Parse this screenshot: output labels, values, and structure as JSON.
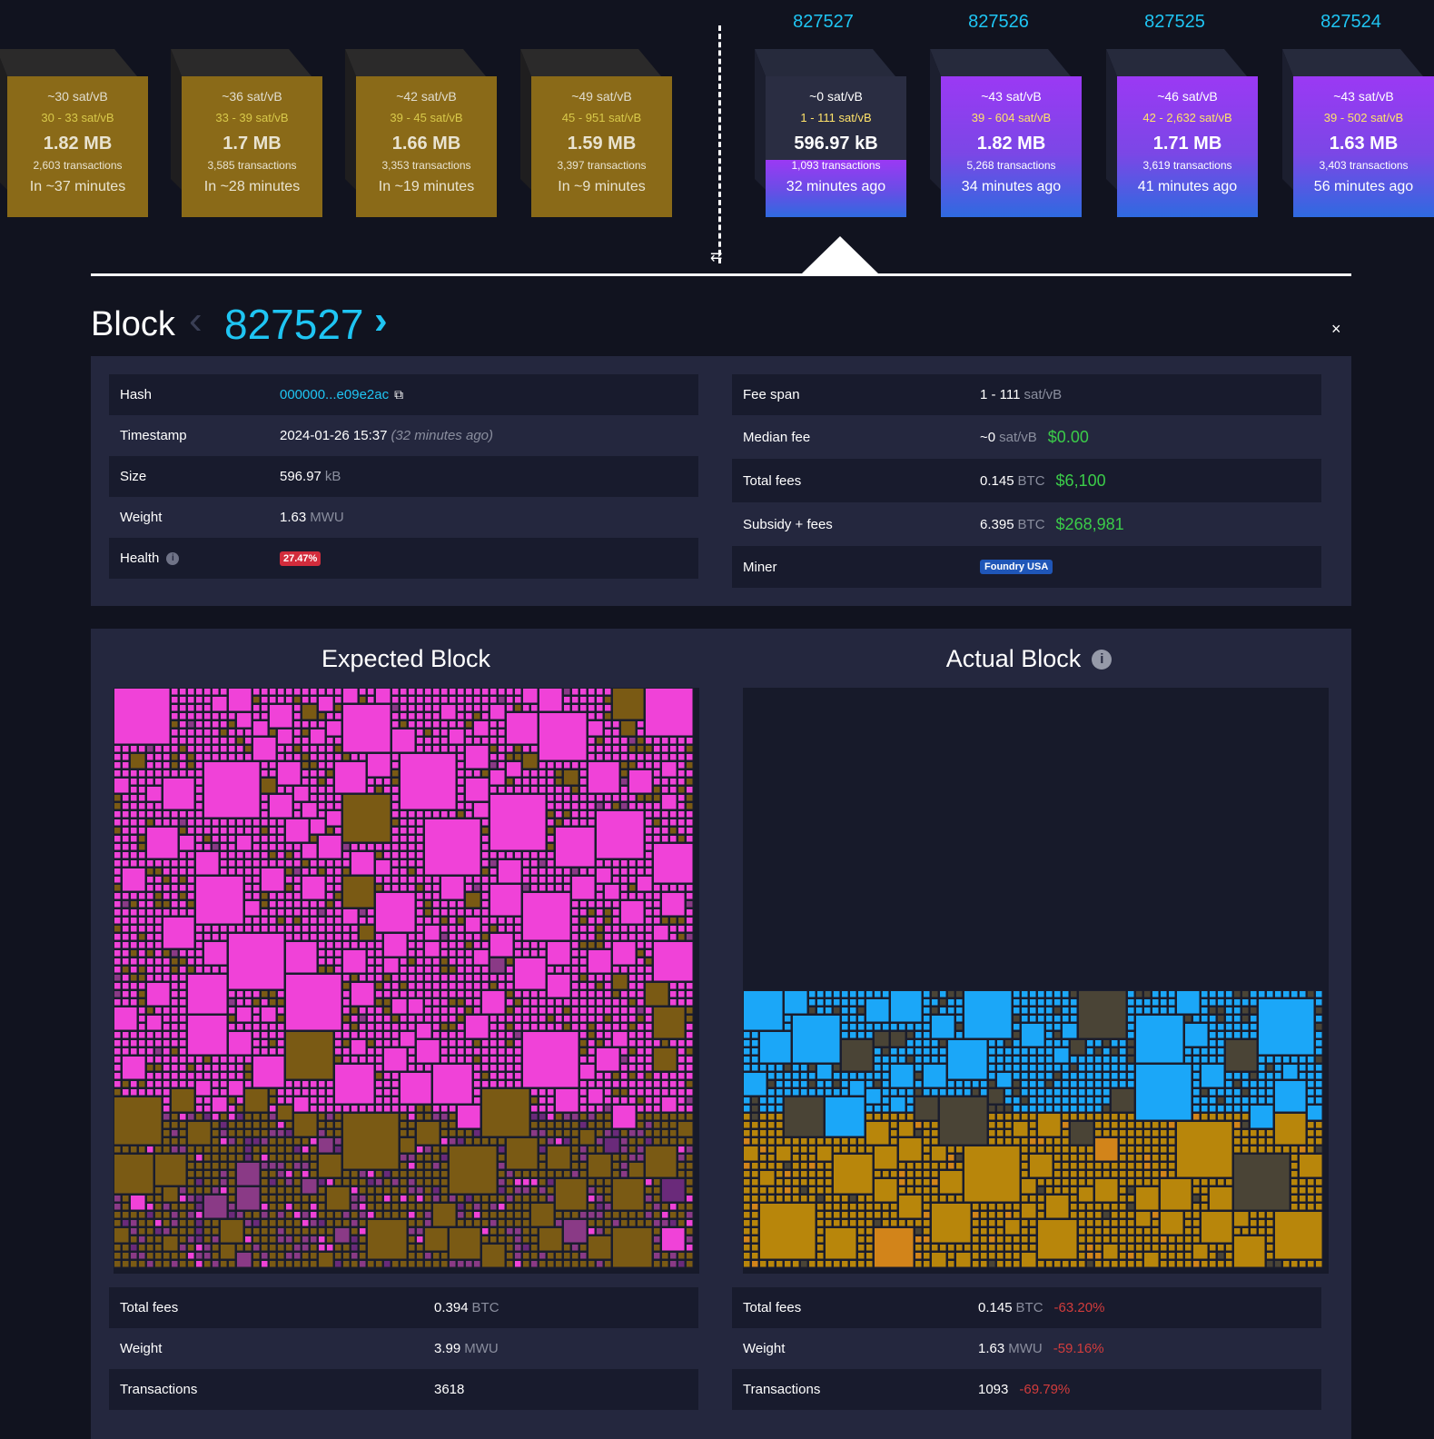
{
  "pending_blocks": [
    {
      "fee": "~30 sat/vB",
      "range": "30 - 33 sat/vB",
      "size": "1.82 MB",
      "tx": "2,603 transactions",
      "time": "In ~37 minutes"
    },
    {
      "fee": "~36 sat/vB",
      "range": "33 - 39 sat/vB",
      "size": "1.7 MB",
      "tx": "3,585 transactions",
      "time": "In ~28 minutes"
    },
    {
      "fee": "~42 sat/vB",
      "range": "39 - 45 sat/vB",
      "size": "1.66 MB",
      "tx": "3,353 transactions",
      "time": "In ~19 minutes"
    },
    {
      "fee": "~49 sat/vB",
      "range": "45 - 951 sat/vB",
      "size": "1.59 MB",
      "tx": "3,397 transactions",
      "time": "In ~9 minutes"
    }
  ],
  "mined_blocks": [
    {
      "height": "827527",
      "fee": "~0 sat/vB",
      "range": "1 - 111 sat/vB",
      "size": "596.97 kB",
      "tx": "1,093 transactions",
      "time": "32 minutes ago"
    },
    {
      "height": "827526",
      "fee": "~43 sat/vB",
      "range": "39 - 604 sat/vB",
      "size": "1.82 MB",
      "tx": "5,268 transactions",
      "time": "34 minutes ago"
    },
    {
      "height": "827525",
      "fee": "~46 sat/vB",
      "range": "42 - 2,632 sat/vB",
      "size": "1.71 MB",
      "tx": "3,619 transactions",
      "time": "41 minutes ago"
    },
    {
      "height": "827524",
      "fee": "~43 sat/vB",
      "range": "39 - 502 sat/vB",
      "size": "1.63 MB",
      "tx": "3,403 transactions",
      "time": "56 minutes ago"
    }
  ],
  "header": {
    "title": "Block",
    "height": "827527"
  },
  "details_left": {
    "hash_label": "Hash",
    "hash_value": "000000...e09e2ac",
    "timestamp_label": "Timestamp",
    "timestamp_value": "2024-01-26 15:37",
    "timestamp_ago": "(32 minutes ago)",
    "size_label": "Size",
    "size_value": "596.97",
    "size_unit": "kB",
    "weight_label": "Weight",
    "weight_value": "1.63",
    "weight_unit": "MWU",
    "health_label": "Health",
    "health_value": "27.47%"
  },
  "details_right": {
    "feespan_label": "Fee span",
    "feespan_value": "1 - 111",
    "feespan_unit": "sat/vB",
    "median_label": "Median fee",
    "median_value": "~0",
    "median_unit": "sat/vB",
    "median_fiat": "$0.00",
    "totalfees_label": "Total fees",
    "totalfees_value": "0.145",
    "totalfees_unit": "BTC",
    "totalfees_fiat": "$6,100",
    "subsidy_label": "Subsidy + fees",
    "subsidy_value": "6.395",
    "subsidy_unit": "BTC",
    "subsidy_fiat": "$268,981",
    "miner_label": "Miner",
    "miner_value": "Foundry USA"
  },
  "expected": {
    "title": "Expected Block",
    "fees_label": "Total fees",
    "fees_value": "0.394",
    "fees_unit": "BTC",
    "weight_label": "Weight",
    "weight_value": "3.99",
    "weight_unit": "MWU",
    "tx_label": "Transactions",
    "tx_value": "3618"
  },
  "actual": {
    "title": "Actual Block",
    "fees_label": "Total fees",
    "fees_value": "0.145",
    "fees_unit": "BTC",
    "fees_delta": "-63.20%",
    "weight_label": "Weight",
    "weight_value": "1.63",
    "weight_unit": "MWU",
    "weight_delta": "-59.16%",
    "tx_label": "Transactions",
    "tx_value": "1093",
    "tx_delta": "-69.79%"
  },
  "colors": {
    "accent": "#1fc5f3",
    "pending": "#8a6a18",
    "expected_tx": "#f042d8",
    "actual_tx": "#1ba7f8",
    "actual_low": "#b8860b",
    "negative": "#d23c3c",
    "fiat": "#3bcc49"
  },
  "icons": [
    "swap-icon",
    "chevron-left-icon",
    "chevron-right-icon",
    "close-icon",
    "copy-icon",
    "info-icon"
  ]
}
